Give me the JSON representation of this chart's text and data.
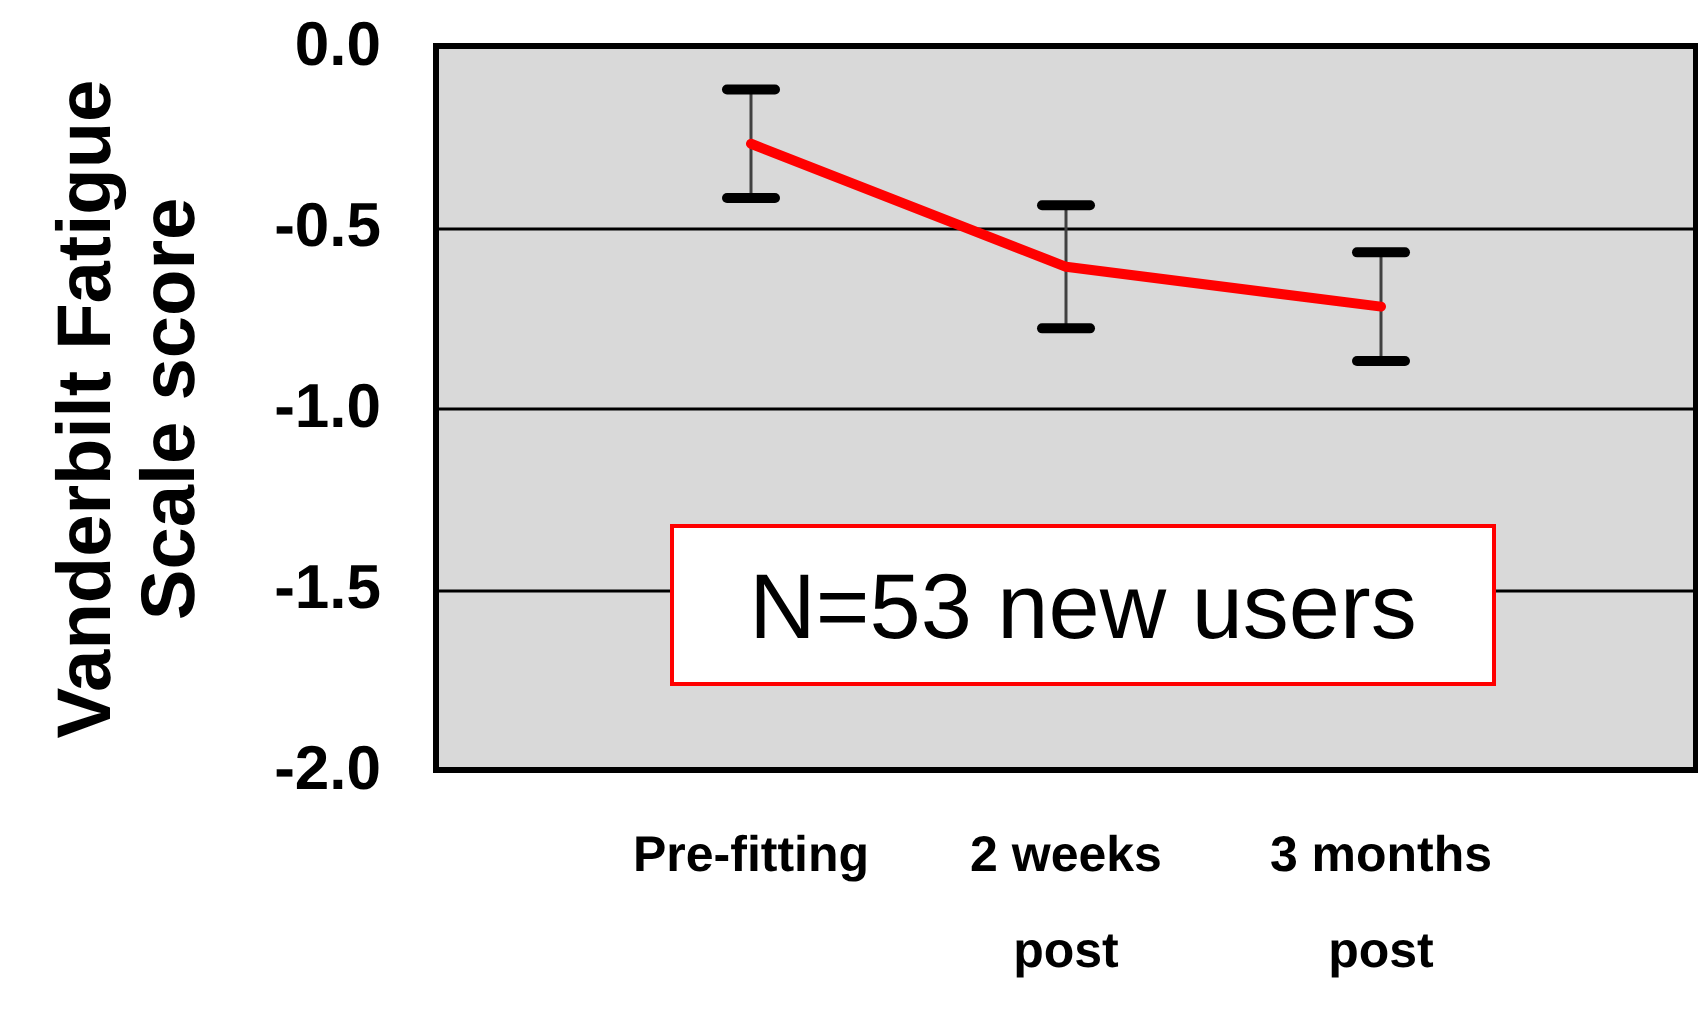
{
  "chart_data": {
    "type": "line",
    "ylabel": "Vanderbilt Fatigue Scale score",
    "categories": [
      "Pre-fitting",
      "2 weeks post",
      "3 months post"
    ],
    "series": [
      {
        "color": "#ff0000",
        "values": [
          -0.27,
          -0.61,
          -0.72
        ],
        "errors": [
          [
            -0.42,
            -0.12
          ],
          [
            -0.78,
            -0.44
          ],
          [
            -0.87,
            -0.57
          ]
        ]
      }
    ],
    "ylim": [
      -2.0,
      0.0
    ],
    "yticks": [
      {
        "value": -2.0,
        "label": "-2.0"
      },
      {
        "value": -1.5,
        "label": "-1.5"
      },
      {
        "value": -1.0,
        "label": "-1.0"
      },
      {
        "value": -0.5,
        "label": "-0.5"
      },
      {
        "value": 0.0,
        "label": "0.0"
      }
    ],
    "grid": "y",
    "marker": "none",
    "line_style": "solid",
    "annotations": [
      "N=53 new users"
    ]
  }
}
